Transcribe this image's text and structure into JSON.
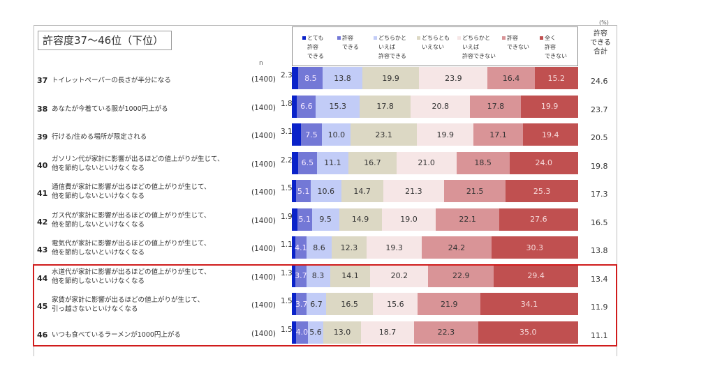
{
  "title": "許容度37〜46位（下位）",
  "unit_label": "(%)",
  "n_header": "n",
  "total_header": [
    "許容",
    "できる",
    "合計"
  ],
  "colors": {
    "very_tolerable": "#0a22c9",
    "tolerable": "#7378d6",
    "somewhat_tolerable": "#c2ccf7",
    "neutral": "#dcd8c4",
    "somewhat_not": "#f6e6e6",
    "not_tolerable": "#d99497",
    "not_at_all": "#c05050",
    "highlight_border": "#d01c1c"
  },
  "chart_data": {
    "type": "bar",
    "orientation": "horizontal-stacked-100",
    "title": "許容度37〜46位（下位）",
    "unit": "%",
    "legend_position": "top",
    "series": [
      {
        "name": "とても許容できる",
        "legend_lines": [
          "とても",
          "許容",
          "できる"
        ],
        "color": "#0a22c9",
        "values": [
          2.3,
          1.8,
          3.1,
          2.2,
          1.5,
          1.9,
          1.1,
          1.3,
          1.5,
          1.5
        ]
      },
      {
        "name": "許容できる",
        "legend_lines": [
          "許容",
          "できる"
        ],
        "color": "#7378d6",
        "values": [
          8.5,
          6.6,
          7.5,
          6.5,
          5.1,
          5.1,
          4.1,
          3.7,
          3.7,
          4.0
        ]
      },
      {
        "name": "どちらかといえば許容できる",
        "legend_lines": [
          "どちらかと",
          "いえば",
          "許容できる"
        ],
        "color": "#c2ccf7",
        "values": [
          13.8,
          15.3,
          10.0,
          11.1,
          10.6,
          9.5,
          8.6,
          8.3,
          6.7,
          5.6
        ]
      },
      {
        "name": "どちらともいえない",
        "legend_lines": [
          "どちらとも",
          "いえない"
        ],
        "color": "#dcd8c4",
        "values": [
          19.9,
          17.8,
          23.1,
          16.7,
          14.7,
          14.9,
          12.3,
          14.1,
          16.5,
          13.0
        ]
      },
      {
        "name": "どちらかといえば許容できない",
        "legend_lines": [
          "どちらかと",
          "いえば",
          "許容できない"
        ],
        "color": "#f6e6e6",
        "values": [
          23.9,
          20.8,
          19.9,
          21.0,
          21.3,
          19.0,
          19.3,
          20.2,
          15.6,
          18.7
        ]
      },
      {
        "name": "許容できない",
        "legend_lines": [
          "許容",
          "できない"
        ],
        "color": "#d99497",
        "values": [
          16.4,
          17.8,
          17.1,
          18.5,
          21.5,
          22.1,
          24.2,
          22.9,
          21.9,
          22.3
        ]
      },
      {
        "name": "全く許容できない",
        "legend_lines": [
          "全く",
          "許容",
          "できない"
        ],
        "color": "#c05050",
        "values": [
          15.2,
          19.9,
          19.4,
          24.0,
          25.3,
          27.6,
          30.3,
          29.4,
          34.1,
          35.0
        ]
      }
    ],
    "rows": [
      {
        "rank": "37",
        "label": "トイレットペーパーの長さが半分になる",
        "n": "(1400)",
        "total": "24.6"
      },
      {
        "rank": "38",
        "label": "あなたが今着ている服が1000円上がる",
        "n": "(1400)",
        "total": "23.7"
      },
      {
        "rank": "39",
        "label": "行ける/住める場所が限定される",
        "n": "(1400)",
        "total": "20.5"
      },
      {
        "rank": "40",
        "label": "ガソリン代が家計に影響が出るほどの値上がりが生じて、\n他を節約しないといけなくなる",
        "n": "(1400)",
        "total": "19.8"
      },
      {
        "rank": "41",
        "label": "通信費が家計に影響が出るほどの値上がりが生じて、\n他を節約しないといけなくなる",
        "n": "(1400)",
        "total": "17.3"
      },
      {
        "rank": "42",
        "label": "ガス代が家計に影響が出るほどの値上がりが生じて、\n他を節約しないといけなくなる",
        "n": "(1400)",
        "total": "16.5"
      },
      {
        "rank": "43",
        "label": "電気代が家計に影響が出るほどの値上がりが生じて、\n他を節約しないといけなくなる",
        "n": "(1400)",
        "total": "13.8"
      },
      {
        "rank": "44",
        "label": "水道代が家計に影響が出るほどの値上がりが生じて、\n他を節約しないといけなくなる",
        "n": "(1400)",
        "total": "13.4"
      },
      {
        "rank": "45",
        "label": "家賃が家計に影響が出るほどの値上がりが生じて、\n引っ越さないといけなくなる",
        "n": "(1400)",
        "total": "11.9"
      },
      {
        "rank": "46",
        "label": "いつも食べているラーメンが1000円上がる",
        "n": "(1400)",
        "total": "11.1"
      }
    ],
    "highlighted_ranks": [
      "44",
      "45",
      "46"
    ]
  }
}
